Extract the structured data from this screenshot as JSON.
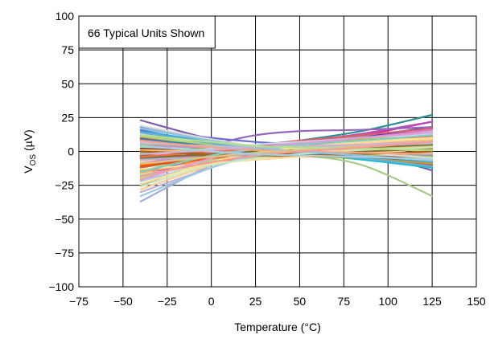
{
  "chart_data": {
    "type": "line",
    "annotation": "66 Typical Units Shown",
    "xlabel": "Temperature (°C)",
    "ylabel": "V_OS (µV)",
    "ylabel_main": "V",
    "ylabel_sub": "OS",
    "ylabel_rest": " (µV)",
    "xlim": [
      -75,
      150
    ],
    "ylim": [
      -100,
      100
    ],
    "x_ticks": [
      -75,
      -50,
      -25,
      0,
      25,
      50,
      75,
      100,
      125,
      150
    ],
    "x_tick_labels": [
      "−75",
      "−50",
      "−25",
      "0",
      "25",
      "50",
      "75",
      "100",
      "125",
      "150"
    ],
    "y_ticks": [
      -100,
      -75,
      -50,
      -25,
      0,
      25,
      50,
      75,
      100
    ],
    "y_tick_labels": [
      "−100",
      "−75",
      "−50",
      "−25",
      "0",
      "25",
      "50",
      "75",
      "100"
    ],
    "grid": true,
    "series": [
      {
        "color": "#7b5fa8",
        "x": [
          -40,
          0,
          25,
          50,
          85,
          125
        ],
        "y": [
          23,
          9,
          4,
          3,
          0,
          -14
        ]
      },
      {
        "color": "#2c8f8f",
        "x": [
          -40,
          0,
          25,
          50,
          85,
          125
        ],
        "y": [
          -12,
          -3,
          3,
          8,
          15,
          27
        ]
      },
      {
        "color": "#e0218a",
        "x": [
          -40,
          0,
          25,
          50,
          85,
          125
        ],
        "y": [
          -8,
          0,
          4,
          7,
          12,
          22
        ]
      },
      {
        "color": "#9c9c9c",
        "x": [
          -40,
          0,
          25,
          50,
          85,
          125
        ],
        "y": [
          -25,
          -6,
          2,
          6,
          11,
          18
        ]
      },
      {
        "color": "#a9c98a",
        "x": [
          -40,
          0,
          25,
          50,
          85,
          125
        ],
        "y": [
          -10,
          -6,
          -4,
          -3,
          -10,
          -33
        ]
      },
      {
        "color": "#1c2fd1",
        "x": [
          -40,
          0,
          25,
          50,
          85,
          125
        ],
        "y": [
          -15,
          -6,
          -1,
          3,
          10,
          18
        ]
      },
      {
        "color": "#b94fb9",
        "x": [
          -40,
          0,
          25,
          50,
          85,
          125
        ],
        "y": [
          -18,
          -4,
          3,
          7,
          13,
          22
        ]
      },
      {
        "color": "#a4acd6",
        "x": [
          -40,
          0,
          25,
          50,
          85,
          125
        ],
        "y": [
          -37,
          -10,
          0,
          4,
          6,
          10
        ]
      },
      {
        "color": "#f5a25d",
        "x": [
          -40,
          0,
          25,
          50,
          85,
          125
        ],
        "y": [
          -5,
          -8,
          -6,
          -4,
          -2,
          0
        ]
      },
      {
        "color": "#3ea6d8",
        "x": [
          -40,
          0,
          25,
          50,
          85,
          125
        ],
        "y": [
          15,
          7,
          3,
          0,
          -4,
          -8
        ]
      },
      {
        "color": "#f2c94c",
        "x": [
          -40,
          0,
          25,
          50,
          85,
          125
        ],
        "y": [
          -20,
          -5,
          1,
          4,
          7,
          12
        ]
      },
      {
        "color": "#c0504d",
        "x": [
          -40,
          0,
          25,
          50,
          85,
          125
        ],
        "y": [
          10,
          3,
          0,
          -2,
          -5,
          -10
        ]
      },
      {
        "color": "#8fd08f",
        "x": [
          -40,
          0,
          25,
          50,
          85,
          125
        ],
        "y": [
          5,
          2,
          0,
          -1,
          -3,
          -5
        ]
      },
      {
        "color": "#d98cb3",
        "x": [
          -40,
          0,
          25,
          50,
          85,
          125
        ],
        "y": [
          -3,
          0,
          2,
          3,
          4,
          6
        ]
      },
      {
        "color": "#5b9bd5",
        "x": [
          -40,
          0,
          25,
          50,
          85,
          125
        ],
        "y": [
          18,
          8,
          4,
          2,
          0,
          -3
        ]
      },
      {
        "color": "#ffcc99",
        "x": [
          -40,
          0,
          25,
          50,
          85,
          125
        ],
        "y": [
          -28,
          -10,
          -2,
          2,
          6,
          9
        ]
      },
      {
        "color": "#70ad47",
        "x": [
          -40,
          0,
          25,
          50,
          85,
          125
        ],
        "y": [
          8,
          5,
          2,
          0,
          -2,
          -6
        ]
      },
      {
        "color": "#c5b0d5",
        "x": [
          -40,
          0,
          25,
          50,
          85,
          125
        ],
        "y": [
          -30,
          -12,
          -3,
          2,
          5,
          8
        ]
      },
      {
        "color": "#ff9896",
        "x": [
          -40,
          0,
          25,
          50,
          85,
          125
        ],
        "y": [
          0,
          1,
          2,
          2,
          3,
          4
        ]
      },
      {
        "color": "#17becf",
        "x": [
          -40,
          0,
          25,
          50,
          85,
          125
        ],
        "y": [
          12,
          4,
          0,
          -2,
          -6,
          -12
        ]
      },
      {
        "color": "#9467bd",
        "x": [
          -40,
          0,
          25,
          50,
          85,
          125
        ],
        "y": [
          -6,
          5,
          12,
          15,
          16,
          18
        ]
      },
      {
        "color": "#bcbd22",
        "x": [
          -40,
          0,
          25,
          50,
          85,
          125
        ],
        "y": [
          -14,
          -4,
          1,
          4,
          9,
          14
        ]
      },
      {
        "color": "#aec7e8",
        "x": [
          -40,
          0,
          25,
          50,
          85,
          125
        ],
        "y": [
          -22,
          -8,
          0,
          5,
          10,
          15
        ]
      },
      {
        "color": "#98df8a",
        "x": [
          -40,
          0,
          25,
          50,
          85,
          125
        ],
        "y": [
          3,
          1,
          0,
          0,
          1,
          3
        ]
      },
      {
        "color": "#ff7f0e",
        "x": [
          -40,
          0,
          25,
          50,
          85,
          125
        ],
        "y": [
          -10,
          -7,
          -5,
          -4,
          -3,
          -1
        ]
      },
      {
        "color": "#f7b6d2",
        "x": [
          -40,
          0,
          25,
          50,
          85,
          125
        ],
        "y": [
          7,
          2,
          0,
          0,
          1,
          2
        ]
      },
      {
        "color": "#6b6ecf",
        "x": [
          -40,
          0,
          25,
          50,
          85,
          125
        ],
        "y": [
          16,
          10,
          7,
          5,
          2,
          -2
        ]
      },
      {
        "color": "#e7ba52",
        "x": [
          -40,
          0,
          25,
          50,
          85,
          125
        ],
        "y": [
          -2,
          -1,
          0,
          1,
          2,
          4
        ]
      },
      {
        "color": "#d6616b",
        "x": [
          -40,
          0,
          25,
          50,
          85,
          125
        ],
        "y": [
          -12,
          -2,
          4,
          8,
          12,
          17
        ]
      },
      {
        "color": "#ced9e6",
        "x": [
          -40,
          0,
          25,
          50,
          85,
          125
        ],
        "y": [
          -8,
          -3,
          0,
          2,
          4,
          7
        ]
      },
      {
        "color": "#bd9e39",
        "x": [
          -40,
          0,
          25,
          50,
          85,
          125
        ],
        "y": [
          6,
          2,
          -1,
          -3,
          -5,
          -9
        ]
      },
      {
        "color": "#c6dbef",
        "x": [
          -40,
          0,
          25,
          50,
          85,
          125
        ],
        "y": [
          -4,
          2,
          5,
          7,
          10,
          13
        ]
      },
      {
        "color": "#fdae6b",
        "x": [
          -40,
          0,
          25,
          50,
          85,
          125
        ],
        "y": [
          -16,
          -6,
          -1,
          2,
          5,
          8
        ]
      },
      {
        "color": "#843c39",
        "x": [
          -40,
          0,
          25,
          50,
          85,
          125
        ],
        "y": [
          2,
          0,
          -1,
          -2,
          -3,
          -4
        ]
      },
      {
        "color": "#a1d99b",
        "x": [
          -40,
          0,
          25,
          50,
          85,
          125
        ],
        "y": [
          -19,
          -7,
          -2,
          1,
          3,
          5
        ]
      },
      {
        "color": "#dadaeb",
        "x": [
          -40,
          0,
          25,
          50,
          85,
          125
        ],
        "y": [
          13,
          6,
          3,
          1,
          0,
          -1
        ]
      },
      {
        "color": "#fdd0a2",
        "x": [
          -40,
          0,
          25,
          50,
          85,
          125
        ],
        "y": [
          -7,
          -2,
          1,
          3,
          6,
          10
        ]
      },
      {
        "color": "#3182bd",
        "x": [
          -40,
          0,
          25,
          50,
          85,
          125
        ],
        "y": [
          9,
          4,
          1,
          -1,
          -4,
          -7
        ]
      },
      {
        "color": "#e6550d",
        "x": [
          -40,
          0,
          25,
          50,
          85,
          125
        ],
        "y": [
          -11,
          -5,
          -2,
          0,
          3,
          6
        ]
      },
      {
        "color": "#ccebc5",
        "x": [
          -40,
          0,
          25,
          50,
          85,
          125
        ],
        "y": [
          -26,
          -9,
          -1,
          3,
          8,
          12
        ]
      },
      {
        "color": "#c994c7",
        "x": [
          -40,
          0,
          25,
          50,
          85,
          125
        ],
        "y": [
          4,
          3,
          2,
          2,
          3,
          5
        ]
      },
      {
        "color": "#74c476",
        "x": [
          -40,
          0,
          25,
          50,
          85,
          125
        ],
        "y": [
          -1,
          0,
          1,
          2,
          4,
          7
        ]
      },
      {
        "color": "#ffe0a3",
        "x": [
          -40,
          0,
          25,
          50,
          85,
          125
        ],
        "y": [
          -13,
          -9,
          -6,
          -4,
          -1,
          2
        ]
      },
      {
        "color": "#b5cf6b",
        "x": [
          -40,
          0,
          25,
          50,
          85,
          125
        ],
        "y": [
          11,
          5,
          2,
          0,
          -2,
          -4
        ]
      },
      {
        "color": "#e377c2",
        "x": [
          -40,
          0,
          25,
          50,
          85,
          125
        ],
        "y": [
          -9,
          -1,
          3,
          6,
          10,
          16
        ]
      },
      {
        "color": "#9ecae1",
        "x": [
          -40,
          0,
          25,
          50,
          85,
          125
        ],
        "y": [
          -33,
          -12,
          -3,
          1,
          4,
          6
        ]
      },
      {
        "color": "#fdbf6f",
        "x": [
          -40,
          0,
          25,
          50,
          85,
          125
        ],
        "y": [
          1,
          0,
          0,
          0,
          1,
          1
        ]
      },
      {
        "color": "#637939",
        "x": [
          -40,
          0,
          25,
          50,
          85,
          125
        ],
        "y": [
          -5,
          -2,
          0,
          1,
          3,
          5
        ]
      },
      {
        "color": "#d9d9d9",
        "x": [
          -40,
          0,
          25,
          50,
          85,
          125
        ],
        "y": [
          19,
          9,
          4,
          2,
          -1,
          -5
        ]
      },
      {
        "color": "#8c6d31",
        "x": [
          -40,
          0,
          25,
          50,
          85,
          125
        ],
        "y": [
          -3,
          -3,
          -2,
          -1,
          0,
          2
        ]
      },
      {
        "color": "#de9ed6",
        "x": [
          -40,
          0,
          25,
          50,
          85,
          125
        ],
        "y": [
          -21,
          -5,
          2,
          6,
          10,
          14
        ]
      },
      {
        "color": "#6baed6",
        "x": [
          -40,
          0,
          25,
          50,
          85,
          125
        ],
        "y": [
          14,
          6,
          2,
          -1,
          -5,
          -11
        ]
      },
      {
        "color": "#fb6a4a",
        "x": [
          -40,
          0,
          25,
          50,
          85,
          125
        ],
        "y": [
          -4,
          0,
          2,
          4,
          7,
          11
        ]
      },
      {
        "color": "#c7e9c0",
        "x": [
          -40,
          0,
          25,
          50,
          85,
          125
        ],
        "y": [
          -17,
          -10,
          -5,
          -2,
          1,
          3
        ]
      },
      {
        "color": "#bcbddc",
        "x": [
          -40,
          0,
          25,
          50,
          85,
          125
        ],
        "y": [
          6,
          4,
          3,
          3,
          4,
          6
        ]
      },
      {
        "color": "#fee391",
        "x": [
          -40,
          0,
          25,
          50,
          85,
          125
        ],
        "y": [
          -24,
          -8,
          -1,
          3,
          7,
          10
        ]
      },
      {
        "color": "#a6611a",
        "x": [
          -40,
          0,
          25,
          50,
          85,
          125
        ],
        "y": [
          0,
          -2,
          -3,
          -3,
          -2,
          0
        ]
      },
      {
        "color": "#80cdc1",
        "x": [
          -40,
          0,
          25,
          50,
          85,
          125
        ],
        "y": [
          -15,
          -3,
          2,
          5,
          8,
          12
        ]
      },
      {
        "color": "#f4a582",
        "x": [
          -40,
          0,
          25,
          50,
          85,
          125
        ],
        "y": [
          8,
          3,
          1,
          0,
          -1,
          -2
        ]
      },
      {
        "color": "#b2abd2",
        "x": [
          -40,
          0,
          25,
          50,
          85,
          125
        ],
        "y": [
          -6,
          -4,
          -2,
          0,
          3,
          7
        ]
      },
      {
        "color": "#92c5de",
        "x": [
          -40,
          0,
          25,
          50,
          85,
          125
        ],
        "y": [
          17,
          8,
          3,
          0,
          -3,
          -7
        ]
      },
      {
        "color": "#dfc27d",
        "x": [
          -40,
          0,
          25,
          50,
          85,
          125
        ],
        "y": [
          -9,
          -4,
          -1,
          1,
          4,
          8
        ]
      },
      {
        "color": "#cab2d6",
        "x": [
          -40,
          0,
          25,
          50,
          85,
          125
        ],
        "y": [
          -2,
          1,
          3,
          4,
          5,
          7
        ]
      },
      {
        "color": "#b2df8a",
        "x": [
          -40,
          0,
          25,
          50,
          85,
          125
        ],
        "y": [
          12,
          7,
          4,
          3,
          2,
          1
        ]
      },
      {
        "color": "#fb9a99",
        "x": [
          -40,
          0,
          25,
          50,
          85,
          125
        ],
        "y": [
          -18,
          -8,
          -3,
          0,
          3,
          7
        ]
      },
      {
        "color": "#a6cee3",
        "x": [
          -40,
          0,
          25,
          50,
          85,
          125
        ],
        "y": [
          4,
          0,
          -2,
          -3,
          -4,
          -6
        ]
      }
    ]
  }
}
